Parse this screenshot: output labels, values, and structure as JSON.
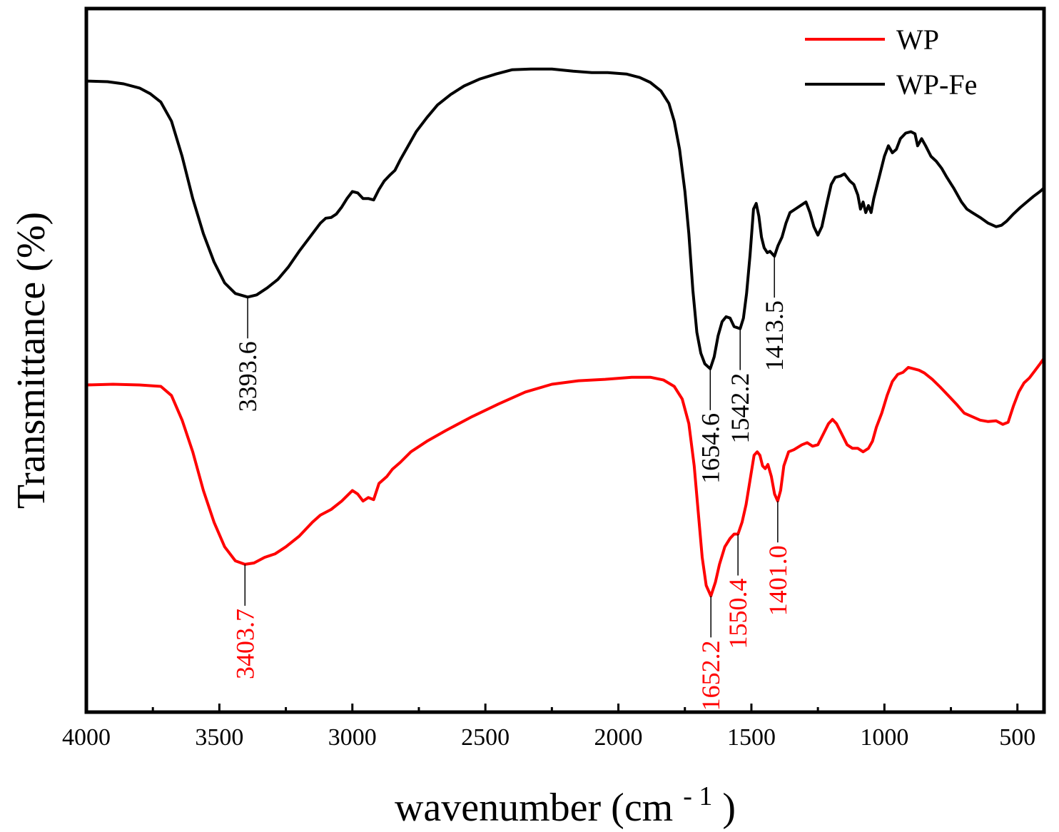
{
  "chart_data": {
    "type": "line",
    "title": "",
    "xlabel": "wavenumber (cm",
    "xlabel_superscript": "- 1",
    "xlabel_close": ")",
    "ylabel": "Transmittance (%)",
    "xlim": [
      4000,
      400
    ],
    "ylim": [
      0,
      100
    ],
    "x_reversed": true,
    "y_ticks_shown": false,
    "x_ticks": [
      "4000",
      "3500",
      "3000",
      "2500",
      "2000",
      "1500",
      "1000",
      "500"
    ],
    "x_tick_values": [
      4000,
      3500,
      3000,
      2500,
      2000,
      1500,
      1000,
      500
    ],
    "legend_position": "top-right",
    "series": [
      {
        "name": "WP",
        "color": "#ff0000",
        "points": [
          [
            4000,
            46.5
          ],
          [
            3900,
            46.6
          ],
          [
            3800,
            46.5
          ],
          [
            3720,
            46.3
          ],
          [
            3680,
            45.0
          ],
          [
            3640,
            41.5
          ],
          [
            3600,
            37.0
          ],
          [
            3560,
            31.5
          ],
          [
            3520,
            27.0
          ],
          [
            3480,
            23.5
          ],
          [
            3440,
            21.5
          ],
          [
            3403.7,
            21.0
          ],
          [
            3370,
            21.2
          ],
          [
            3330,
            22.0
          ],
          [
            3290,
            22.5
          ],
          [
            3250,
            23.5
          ],
          [
            3200,
            25.0
          ],
          [
            3150,
            27.0
          ],
          [
            3120,
            28.0
          ],
          [
            3080,
            28.8
          ],
          [
            3040,
            30.0
          ],
          [
            3000,
            31.5
          ],
          [
            2980,
            31.0
          ],
          [
            2960,
            30.0
          ],
          [
            2940,
            30.5
          ],
          [
            2920,
            30.2
          ],
          [
            2900,
            32.5
          ],
          [
            2870,
            33.5
          ],
          [
            2850,
            34.5
          ],
          [
            2820,
            35.5
          ],
          [
            2780,
            37.0
          ],
          [
            2720,
            38.5
          ],
          [
            2650,
            40.0
          ],
          [
            2550,
            42.0
          ],
          [
            2450,
            43.8
          ],
          [
            2350,
            45.5
          ],
          [
            2250,
            46.6
          ],
          [
            2150,
            47.1
          ],
          [
            2050,
            47.3
          ],
          [
            1950,
            47.6
          ],
          [
            1880,
            47.6
          ],
          [
            1830,
            47.2
          ],
          [
            1790,
            46.3
          ],
          [
            1760,
            44.5
          ],
          [
            1735,
            41.0
          ],
          [
            1715,
            35.0
          ],
          [
            1700,
            28.5
          ],
          [
            1685,
            22.0
          ],
          [
            1670,
            18.0
          ],
          [
            1652.2,
            16.5
          ],
          [
            1635,
            18.5
          ],
          [
            1620,
            21.0
          ],
          [
            1600,
            23.5
          ],
          [
            1580,
            24.7
          ],
          [
            1565,
            25.3
          ],
          [
            1550.4,
            25.3
          ],
          [
            1535,
            27.0
          ],
          [
            1520,
            29.5
          ],
          [
            1505,
            33.0
          ],
          [
            1490,
            36.5
          ],
          [
            1478,
            37.0
          ],
          [
            1468,
            36.5
          ],
          [
            1458,
            35.0
          ],
          [
            1448,
            34.6
          ],
          [
            1438,
            35.2
          ],
          [
            1425,
            33.5
          ],
          [
            1413,
            31.0
          ],
          [
            1401,
            30.0
          ],
          [
            1390,
            31.5
          ],
          [
            1378,
            35.0
          ],
          [
            1360,
            37.0
          ],
          [
            1340,
            37.3
          ],
          [
            1310,
            38.0
          ],
          [
            1290,
            38.3
          ],
          [
            1270,
            37.8
          ],
          [
            1250,
            38.0
          ],
          [
            1230,
            39.5
          ],
          [
            1210,
            41.0
          ],
          [
            1195,
            41.6
          ],
          [
            1180,
            41.0
          ],
          [
            1160,
            39.5
          ],
          [
            1140,
            38.0
          ],
          [
            1120,
            37.5
          ],
          [
            1100,
            37.5
          ],
          [
            1080,
            37.0
          ],
          [
            1060,
            37.5
          ],
          [
            1045,
            38.5
          ],
          [
            1030,
            40.5
          ],
          [
            1010,
            42.5
          ],
          [
            990,
            45.0
          ],
          [
            970,
            47.0
          ],
          [
            950,
            48.0
          ],
          [
            930,
            48.3
          ],
          [
            910,
            49.0
          ],
          [
            890,
            48.8
          ],
          [
            870,
            48.6
          ],
          [
            850,
            48.2
          ],
          [
            820,
            47.3
          ],
          [
            790,
            46.2
          ],
          [
            760,
            45.0
          ],
          [
            730,
            43.8
          ],
          [
            700,
            42.5
          ],
          [
            670,
            42.0
          ],
          [
            640,
            41.5
          ],
          [
            610,
            41.3
          ],
          [
            580,
            41.4
          ],
          [
            555,
            40.9
          ],
          [
            535,
            41.2
          ],
          [
            515,
            43.5
          ],
          [
            495,
            45.5
          ],
          [
            475,
            46.8
          ],
          [
            455,
            47.5
          ],
          [
            435,
            48.5
          ],
          [
            415,
            49.5
          ],
          [
            400,
            50.3
          ]
        ],
        "peaks": [
          {
            "x": 3403.7,
            "label": "3403.7"
          },
          {
            "x": 1652.2,
            "label": "1652.2"
          },
          {
            "x": 1550.4,
            "label": "1550.4"
          },
          {
            "x": 1401.0,
            "label": "1401.0"
          }
        ]
      },
      {
        "name": "WP-Fe",
        "color": "#000000",
        "points": [
          [
            4000,
            89.7
          ],
          [
            3920,
            89.6
          ],
          [
            3860,
            89.3
          ],
          [
            3800,
            88.7
          ],
          [
            3760,
            87.9
          ],
          [
            3720,
            86.7
          ],
          [
            3680,
            84.0
          ],
          [
            3640,
            79.0
          ],
          [
            3600,
            73.0
          ],
          [
            3560,
            68.0
          ],
          [
            3520,
            64.0
          ],
          [
            3480,
            61.0
          ],
          [
            3440,
            59.5
          ],
          [
            3393.6,
            59.0
          ],
          [
            3360,
            59.3
          ],
          [
            3320,
            60.3
          ],
          [
            3280,
            61.5
          ],
          [
            3240,
            63.3
          ],
          [
            3200,
            65.5
          ],
          [
            3160,
            67.5
          ],
          [
            3120,
            69.5
          ],
          [
            3100,
            70.2
          ],
          [
            3080,
            70.3
          ],
          [
            3060,
            70.8
          ],
          [
            3040,
            71.8
          ],
          [
            3020,
            73.0
          ],
          [
            3000,
            74.0
          ],
          [
            2980,
            73.8
          ],
          [
            2960,
            73.0
          ],
          [
            2940,
            73.0
          ],
          [
            2920,
            72.8
          ],
          [
            2900,
            74.3
          ],
          [
            2880,
            75.5
          ],
          [
            2860,
            76.3
          ],
          [
            2840,
            77.0
          ],
          [
            2820,
            78.5
          ],
          [
            2790,
            80.5
          ],
          [
            2760,
            82.5
          ],
          [
            2720,
            84.5
          ],
          [
            2680,
            86.3
          ],
          [
            2630,
            87.8
          ],
          [
            2580,
            89.0
          ],
          [
            2520,
            90.0
          ],
          [
            2460,
            90.7
          ],
          [
            2400,
            91.3
          ],
          [
            2330,
            91.4
          ],
          [
            2250,
            91.4
          ],
          [
            2170,
            91.1
          ],
          [
            2100,
            90.9
          ],
          [
            2040,
            90.9
          ],
          [
            1970,
            90.7
          ],
          [
            1920,
            90.2
          ],
          [
            1880,
            89.5
          ],
          [
            1840,
            88.3
          ],
          [
            1810,
            86.5
          ],
          [
            1790,
            84.0
          ],
          [
            1770,
            80.0
          ],
          [
            1750,
            74.0
          ],
          [
            1735,
            68.0
          ],
          [
            1720,
            60.0
          ],
          [
            1705,
            54.0
          ],
          [
            1690,
            51.0
          ],
          [
            1675,
            49.5
          ],
          [
            1654.6,
            48.8
          ],
          [
            1640,
            50.5
          ],
          [
            1625,
            53.5
          ],
          [
            1610,
            55.5
          ],
          [
            1595,
            56.2
          ],
          [
            1580,
            56.0
          ],
          [
            1565,
            54.8
          ],
          [
            1542.2,
            54.5
          ],
          [
            1530,
            56.0
          ],
          [
            1518,
            59.5
          ],
          [
            1505,
            65.0
          ],
          [
            1492,
            71.5
          ],
          [
            1482,
            72.3
          ],
          [
            1472,
            70.5
          ],
          [
            1462,
            67.5
          ],
          [
            1452,
            66.0
          ],
          [
            1440,
            65.3
          ],
          [
            1430,
            65.5
          ],
          [
            1413.5,
            64.8
          ],
          [
            1400,
            66.3
          ],
          [
            1385,
            67.5
          ],
          [
            1370,
            69.5
          ],
          [
            1355,
            71.0
          ],
          [
            1335,
            71.5
          ],
          [
            1315,
            72.0
          ],
          [
            1295,
            72.5
          ],
          [
            1280,
            71.0
          ],
          [
            1265,
            69.0
          ],
          [
            1250,
            67.8
          ],
          [
            1235,
            69.0
          ],
          [
            1215,
            72.5
          ],
          [
            1200,
            75.0
          ],
          [
            1185,
            76.0
          ],
          [
            1165,
            76.2
          ],
          [
            1150,
            76.5
          ],
          [
            1130,
            75.5
          ],
          [
            1115,
            75.0
          ],
          [
            1100,
            73.5
          ],
          [
            1090,
            71.5
          ],
          [
            1080,
            72.5
          ],
          [
            1070,
            71.0
          ],
          [
            1060,
            72.0
          ],
          [
            1050,
            71.0
          ],
          [
            1040,
            73.0
          ],
          [
            1020,
            76.0
          ],
          [
            1000,
            79.0
          ],
          [
            985,
            80.5
          ],
          [
            970,
            79.5
          ],
          [
            955,
            80.0
          ],
          [
            940,
            81.5
          ],
          [
            920,
            82.3
          ],
          [
            900,
            82.5
          ],
          [
            885,
            82.2
          ],
          [
            875,
            80.5
          ],
          [
            860,
            81.5
          ],
          [
            845,
            80.5
          ],
          [
            825,
            79.0
          ],
          [
            805,
            78.3
          ],
          [
            785,
            77.3
          ],
          [
            765,
            76.0
          ],
          [
            740,
            74.5
          ],
          [
            710,
            72.5
          ],
          [
            690,
            71.5
          ],
          [
            670,
            71.0
          ],
          [
            640,
            70.3
          ],
          [
            610,
            69.5
          ],
          [
            580,
            69.0
          ],
          [
            560,
            69.2
          ],
          [
            540,
            69.8
          ],
          [
            515,
            70.8
          ],
          [
            490,
            71.7
          ],
          [
            465,
            72.5
          ],
          [
            440,
            73.3
          ],
          [
            415,
            74.0
          ],
          [
            400,
            74.5
          ]
        ],
        "peaks": [
          {
            "x": 3393.6,
            "label": "3393.6"
          },
          {
            "x": 1654.6,
            "label": "1654.6"
          },
          {
            "x": 1542.2,
            "label": "1542.2"
          },
          {
            "x": 1413.5,
            "label": "1413.5"
          }
        ]
      }
    ]
  }
}
